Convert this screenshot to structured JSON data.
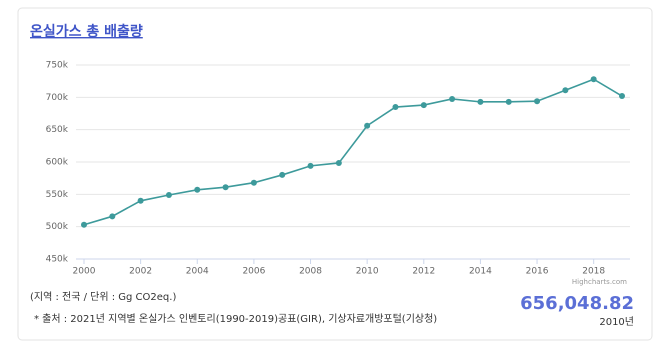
{
  "chart_data": {
    "type": "line",
    "title": "온실가스 총 배출량",
    "x": [
      2000,
      2001,
      2002,
      2003,
      2004,
      2005,
      2006,
      2007,
      2008,
      2009,
      2010,
      2011,
      2012,
      2013,
      2014,
      2015,
      2016,
      2017,
      2018,
      2019
    ],
    "series": [
      {
        "name": "온실가스 총 배출량",
        "color": "#3d9a9b",
        "values": [
          503000,
          516000,
          540000,
          549000,
          557000,
          561000,
          568000,
          580000,
          594000,
          598500,
          656048.82,
          685000,
          688000,
          697500,
          693000,
          693000,
          694000,
          711000,
          728000,
          702000
        ]
      }
    ],
    "xlim": [
      2000,
      2019
    ],
    "xticks": [
      2000,
      2002,
      2004,
      2006,
      2008,
      2010,
      2012,
      2014,
      2016,
      2018
    ],
    "ylim": [
      450000,
      750000
    ],
    "yticks": [
      {
        "value": 450000,
        "label": "450k"
      },
      {
        "value": 500000,
        "label": "500k"
      },
      {
        "value": 550000,
        "label": "550k"
      },
      {
        "value": 600000,
        "label": "600k"
      },
      {
        "value": 650000,
        "label": "650k"
      },
      {
        "value": 700000,
        "label": "700k"
      },
      {
        "value": 750000,
        "label": "750k"
      }
    ],
    "grid": true,
    "credit": "Highcharts.com",
    "note_unit": "(지역 : 전국 / 단위 : Gg CO2eq.)",
    "note_source": "* 출처 : 2021년 지역별 온실가스 인벤토리(1990-2019)공표(GIR), 기상자료개방포털(기상청)",
    "highlight": {
      "value_label": "656,048.82",
      "period": "2010년"
    }
  }
}
